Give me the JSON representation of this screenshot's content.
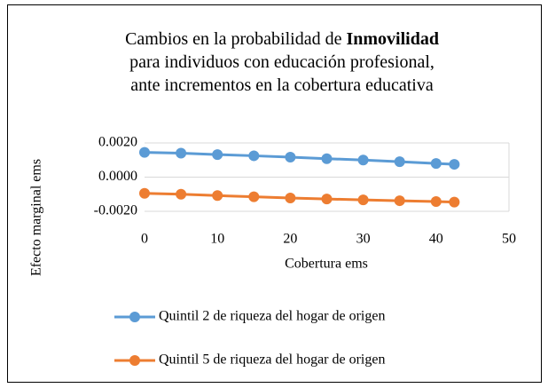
{
  "chart_data": {
    "type": "line",
    "title": [
      [
        {
          "text": "Cambios en la probabilidad de "
        },
        {
          "text": "Inmovilidad",
          "bold": true
        }
      ],
      [
        {
          "text": "para individuos con educación profesional,"
        }
      ],
      [
        {
          "text": "ante incrementos en la cobertura educativa"
        }
      ]
    ],
    "x_label": "Cobertura ems",
    "y_label": "Efecto marginal ems",
    "x": [
      0,
      5,
      10,
      15,
      20,
      25,
      30,
      35,
      40,
      42.5
    ],
    "series": [
      {
        "name": "Quintil 2 de riqueza del hogar de origen",
        "color": "#5b9bd5",
        "values": [
          0.00145,
          0.0014,
          0.00132,
          0.00125,
          0.00117,
          0.00108,
          0.001,
          0.0009,
          0.0008,
          0.00075
        ]
      },
      {
        "name": "Quintil 5 de riqueza del hogar de origen",
        "color": "#ed7d31",
        "values": [
          -0.00095,
          -0.001,
          -0.00108,
          -0.00115,
          -0.00122,
          -0.00128,
          -0.00133,
          -0.00138,
          -0.00143,
          -0.00146
        ]
      }
    ],
    "xlim": [
      0,
      50
    ],
    "xticks": [
      0,
      10,
      20,
      30,
      40,
      50
    ],
    "ylim": [
      -0.002,
      0.002
    ],
    "yticks": [
      {
        "value": -0.002,
        "label": "-0.0020"
      },
      {
        "value": 0,
        "label": "0.0000"
      },
      {
        "value": 0.002,
        "label": "0.0020"
      }
    ],
    "grid": true,
    "legend": "bottom"
  }
}
